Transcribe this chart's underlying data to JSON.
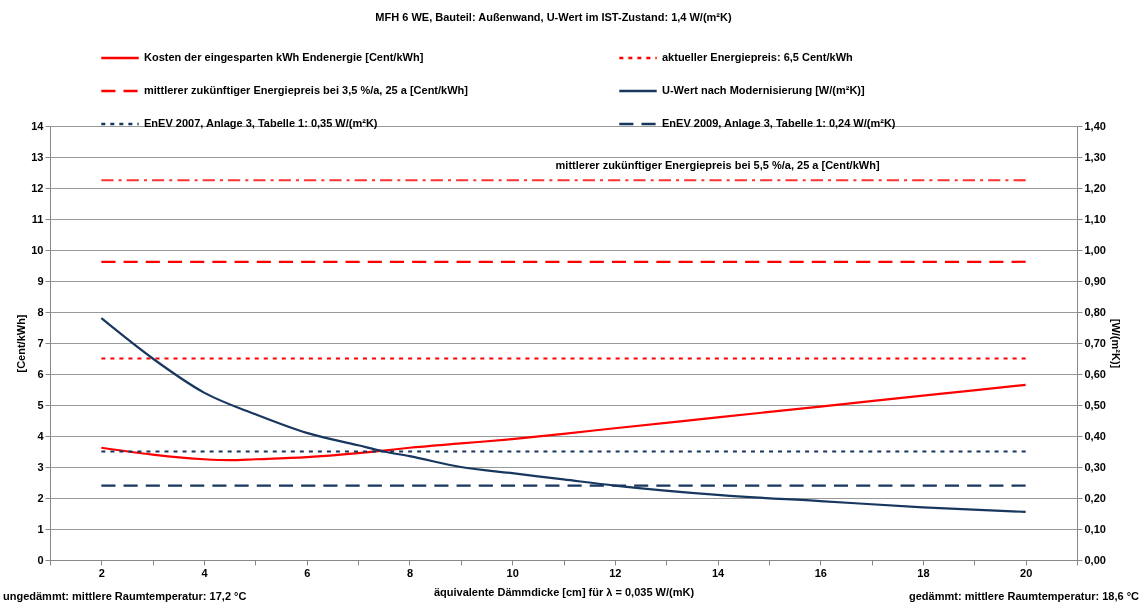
{
  "chart_data": {
    "type": "line",
    "title": "MFH 6 WE, Bauteil: Außenwand, U-Wert im IST-Zustand: 1,4 W/(m²K)",
    "xlabel": "äquivalente Dämmdicke [cm] für λ = 0,035 W/(mK)",
    "ylabel": "[Cent/kWh]",
    "y2label": "[W/(m²K)]",
    "x": [
      2,
      3,
      4,
      4.5,
      5,
      6,
      7,
      7.5,
      8,
      9,
      10,
      11,
      12,
      14,
      16,
      18,
      20
    ],
    "series": [
      {
        "name": "Kosten der eingesparten kWh Endenergie [Cent/kWh]",
        "color": "#ff0000",
        "line_style": "solid",
        "values": [
          3.62,
          3.4,
          3.25,
          3.22,
          3.25,
          3.32,
          3.45,
          3.53,
          3.62,
          3.76,
          3.9,
          4.07,
          4.25,
          4.6,
          4.95,
          5.3,
          5.65
        ]
      },
      {
        "name": "aktueller Energiepreis: 6,5 Cent/kWh",
        "color": "#ff0000",
        "line_style": "dotted",
        "x": [
          2,
          20
        ],
        "values": [
          6.5,
          6.5
        ]
      },
      {
        "name": "mittlerer zukünftiger Energiepreis bei 3,5 %/a, 25 a [Cent/kWh]",
        "color": "#ff0000",
        "line_style": "dashed",
        "x": [
          2,
          20
        ],
        "values": [
          9.62,
          9.62
        ]
      },
      {
        "name": "U-Wert nach Modernisierung [W/(m²K)]",
        "color": "#17375e",
        "line_style": "solid",
        "axis": "y2",
        "x": [
          2,
          3,
          4,
          5,
          6,
          7,
          7.5,
          8,
          9,
          10,
          11,
          12,
          14,
          16,
          18,
          20
        ],
        "values": [
          0.78,
          0.65,
          0.54,
          0.47,
          0.41,
          0.37,
          0.35,
          0.335,
          0.3,
          0.28,
          0.26,
          0.24,
          0.21,
          0.19,
          0.17,
          0.155
        ]
      },
      {
        "name": "EnEV 2007, Anlage 3, Tabelle 1: 0,35 W/(m²K)",
        "color": "#17375e",
        "line_style": "dotted",
        "axis": "y2",
        "x": [
          2,
          20
        ],
        "values": [
          0.35,
          0.35
        ]
      },
      {
        "name": "EnEV 2009, Anlage 3, Tabelle 1: 0,24 W/(m²K)",
        "color": "#17375e",
        "line_style": "dashed",
        "axis": "y2",
        "x": [
          2,
          20
        ],
        "values": [
          0.24,
          0.24
        ]
      },
      {
        "color": "#ff3333",
        "line_style": "dashdot",
        "x": [
          2,
          20
        ],
        "values": [
          12.25,
          12.25
        ]
      }
    ],
    "annotations": [
      "ungedämmt: mittlere Raumtemperatur: 17,2 °C",
      "gedämmt: mittlere Raumtemperatur: 18,6 °C",
      {
        "text": "mittlerer zukünftiger Energiepreis bei 5,5 %/a, 25 a [Cent/kWh]",
        "x": 14,
        "y": 12.25
      }
    ],
    "xlim": [
      1,
      21
    ],
    "xticks": [
      {
        "value": 1,
        "label": null
      },
      2,
      {
        "value": 3,
        "label": null
      },
      4,
      {
        "value": 5,
        "label": null
      },
      6,
      {
        "value": 7,
        "label": null
      },
      8,
      {
        "value": 9,
        "label": null
      },
      10,
      {
        "value": 11,
        "label": null
      },
      12,
      {
        "value": 13,
        "label": null
      },
      14,
      {
        "value": 15,
        "label": null
      },
      16,
      {
        "value": 17,
        "label": null
      },
      18,
      {
        "value": 19,
        "label": null
      },
      20,
      {
        "value": 21,
        "label": null
      }
    ],
    "ylim": [
      0,
      14
    ],
    "yticks": [
      0,
      1,
      2,
      3,
      4,
      5,
      6,
      7,
      8,
      9,
      10,
      11,
      12,
      13,
      14
    ],
    "y2lim": [
      0,
      1.4
    ],
    "y2ticks": [
      {
        "value": 0,
        "label": "0,00"
      },
      {
        "value": 0.1,
        "label": "0,10"
      },
      {
        "value": 0.2,
        "label": "0,20"
      },
      {
        "value": 0.3,
        "label": "0,30"
      },
      {
        "value": 0.4,
        "label": "0,40"
      },
      {
        "value": 0.5,
        "label": "0,50"
      },
      {
        "value": 0.6,
        "label": "0,60"
      },
      {
        "value": 0.7,
        "label": "0,70"
      },
      {
        "value": 0.8,
        "label": "0,80"
      },
      {
        "value": 0.9,
        "label": "0,90"
      },
      {
        "value": 1,
        "label": "1,00"
      },
      {
        "value": 1.1,
        "label": "1,10"
      },
      {
        "value": 1.2,
        "label": "1,20"
      },
      {
        "value": 1.3,
        "label": "1,30"
      },
      {
        "value": 1.4,
        "label": "1,40"
      }
    ],
    "grid": "y",
    "legend": "top",
    "marker": "none"
  }
}
